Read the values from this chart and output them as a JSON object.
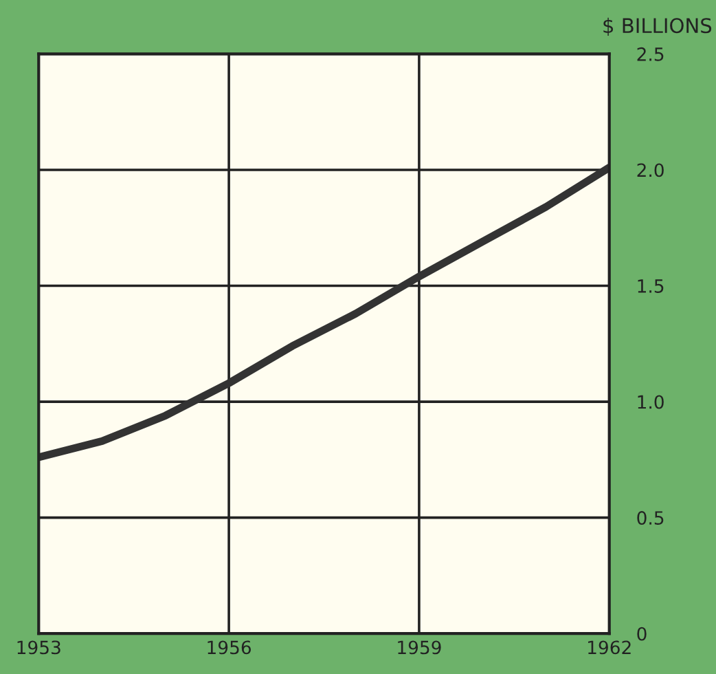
{
  "chart_data": {
    "type": "line",
    "ylabel": "$ BILLIONS",
    "x": [
      1953,
      1954,
      1955,
      1956,
      1957,
      1958,
      1959,
      1960,
      1961,
      1962
    ],
    "series": [
      {
        "color": "#333333",
        "values": [
          0.76,
          0.83,
          0.94,
          1.08,
          1.24,
          1.38,
          1.54,
          1.69,
          1.84,
          2.01
        ]
      }
    ],
    "xlim": [
      1953,
      1962
    ],
    "xticks": [
      1953,
      1956,
      1959,
      1962
    ],
    "ylim": [
      0,
      2.5
    ],
    "yticks": [
      0,
      0.5,
      {
        "value": 1,
        "label": "1.0"
      },
      1.5,
      {
        "value": 2,
        "label": "2.0"
      },
      2.5
    ],
    "grid": true,
    "marker": "none",
    "line_style": "solid"
  }
}
